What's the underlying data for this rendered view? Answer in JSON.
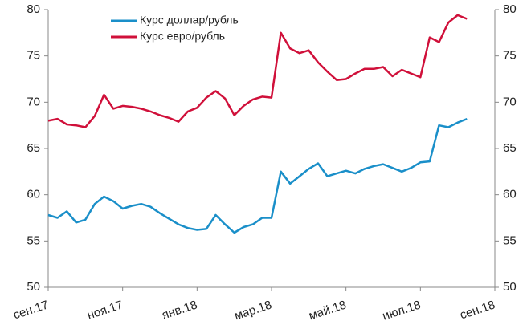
{
  "chart_data": {
    "type": "line",
    "categories": [
      "сен.17",
      null,
      null,
      null,
      null,
      null,
      null,
      null,
      "ноя.17",
      null,
      null,
      null,
      null,
      null,
      null,
      null,
      "янв.18",
      null,
      null,
      null,
      null,
      null,
      null,
      null,
      "мар.18",
      null,
      null,
      null,
      null,
      null,
      null,
      null,
      "май.18",
      null,
      null,
      null,
      null,
      null,
      null,
      null,
      "июл.18",
      null,
      null,
      null,
      null,
      null,
      null,
      null,
      "сен.18"
    ],
    "series": [
      {
        "name": "Курс доллар/рубль",
        "color": "#1a8fc9",
        "values": [
          57.8,
          57.5,
          58.2,
          57.0,
          57.3,
          59.0,
          59.8,
          59.3,
          58.5,
          58.8,
          59.0,
          58.7,
          58.0,
          57.4,
          56.8,
          56.4,
          56.2,
          56.3,
          57.8,
          56.8,
          55.9,
          56.5,
          56.8,
          57.5,
          57.5,
          62.5,
          61.2,
          62.0,
          62.8,
          63.4,
          62.0,
          62.3,
          62.6,
          62.3,
          62.8,
          63.1,
          63.3,
          62.9,
          62.5,
          62.9,
          63.5,
          63.6,
          67.5,
          67.3,
          67.8,
          68.2,
          null,
          null,
          null
        ]
      },
      {
        "name": "Курс евро/рубль",
        "color": "#d0103a",
        "values": [
          68.0,
          68.2,
          67.6,
          67.5,
          67.3,
          68.5,
          70.8,
          69.3,
          69.6,
          69.5,
          69.3,
          69.0,
          68.6,
          68.3,
          67.9,
          69.0,
          69.4,
          70.5,
          71.2,
          70.4,
          68.6,
          69.6,
          70.3,
          70.6,
          70.5,
          77.5,
          75.8,
          75.3,
          75.6,
          74.3,
          73.3,
          72.4,
          72.5,
          73.1,
          73.6,
          73.6,
          73.8,
          72.8,
          73.5,
          73.1,
          72.7,
          77.0,
          76.5,
          78.6,
          79.4,
          79.0,
          null,
          null,
          null
        ]
      }
    ],
    "ylim": [
      50,
      80
    ],
    "yticks": [
      50,
      55,
      60,
      65,
      70,
      75,
      80
    ],
    "y2lim": [
      50,
      80
    ],
    "y2ticks": [
      50,
      55,
      60,
      65,
      70,
      75,
      80
    ],
    "legend": "upper left"
  }
}
